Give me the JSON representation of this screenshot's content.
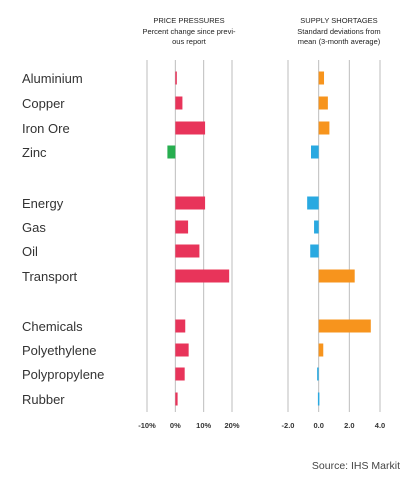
{
  "chart_data": [
    {
      "type": "bar",
      "orientation": "horizontal",
      "title": "PRICE PRESSURES",
      "subtitle": [
        "Percent change since previ-",
        "ous report"
      ],
      "xlabel": "",
      "ylabel": "",
      "xlim": [
        -10,
        20
      ],
      "ticks": [
        -10,
        0,
        10,
        20
      ],
      "tick_labels": [
        "-10%",
        "0%",
        "10%",
        "20%"
      ],
      "grid": true,
      "colors": {
        "positive": "#e8345a",
        "negative": "#27ae4f"
      },
      "categories": [
        "Aluminium",
        "Copper",
        "Iron Ore",
        "Zinc",
        "Energy",
        "Gas",
        "Oil",
        "Transport",
        "Chemicals",
        "Polyethylene",
        "Polypropylene",
        "Rubber"
      ],
      "values": [
        0.3,
        2.5,
        10.5,
        -2.8,
        10.5,
        4.5,
        8.5,
        19.0,
        3.5,
        4.7,
        3.3,
        0.8
      ]
    },
    {
      "type": "bar",
      "orientation": "horizontal",
      "title": "SUPPLY SHORTAGES",
      "subtitle": [
        "Standard deviations from",
        "mean (3-month average)"
      ],
      "xlabel": "",
      "ylabel": "",
      "xlim": [
        -2,
        4
      ],
      "ticks": [
        -2,
        0,
        2,
        4
      ],
      "tick_labels": [
        "-2.0",
        "0.0",
        "2.0",
        "4.0"
      ],
      "grid": true,
      "colors": {
        "positive": "#f7941d",
        "negative": "#29a9e1"
      },
      "categories": [
        "Aluminium",
        "Copper",
        "Iron Ore",
        "Zinc",
        "Energy",
        "Gas",
        "Oil",
        "Transport",
        "Chemicals",
        "Polyethylene",
        "Polypropylene",
        "Rubber"
      ],
      "values": [
        0.35,
        0.6,
        0.7,
        -0.5,
        -0.75,
        -0.3,
        -0.55,
        2.35,
        3.4,
        0.3,
        -0.1,
        -0.05
      ]
    }
  ],
  "source": "Source: IHS Markit"
}
